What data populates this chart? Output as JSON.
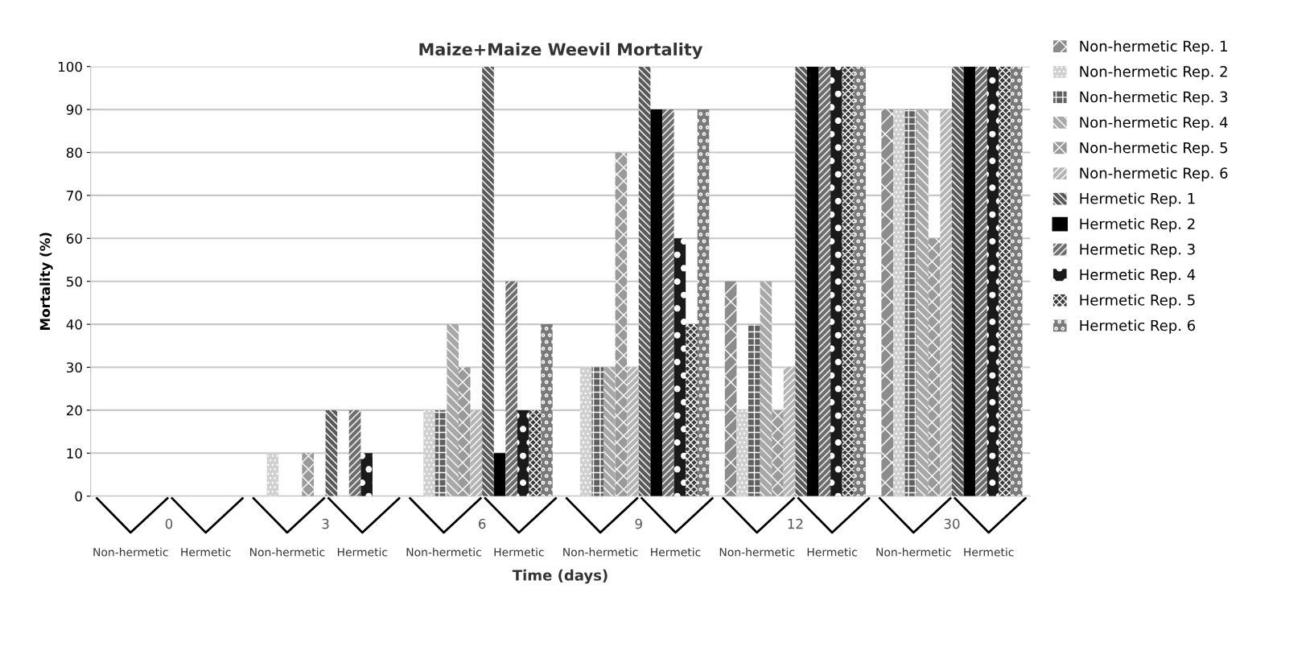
{
  "chart_data": {
    "type": "bar",
    "title": "Maize+Maize Weevil Mortality",
    "xlabel": "Time (days)",
    "ylabel": "Mortality (%)",
    "categories": [
      "0",
      "3",
      "6",
      "9",
      "12",
      "30"
    ],
    "series": [
      {
        "name": "Non-hermetic Rep. 1",
        "color": "#8c8c8c",
        "values": [
          0,
          0,
          0,
          0,
          50,
          90
        ]
      },
      {
        "name": "Non-hermetic Rep. 2",
        "color": "#d0d0d0",
        "values": [
          0,
          10,
          20,
          30,
          20,
          90
        ]
      },
      {
        "name": "Non-hermetic Rep. 3",
        "color": "#606060",
        "values": [
          0,
          0,
          20,
          30,
          40,
          90
        ]
      },
      {
        "name": "Non-hermetic Rep. 4",
        "color": "#a8a8a8",
        "values": [
          0,
          0,
          40,
          30,
          50,
          90
        ]
      },
      {
        "name": "Non-hermetic Rep. 5",
        "color": "#9a9a9a",
        "values": [
          0,
          10,
          30,
          80,
          20,
          60
        ]
      },
      {
        "name": "Non-hermetic Rep. 6",
        "color": "#b4b4b4",
        "values": [
          0,
          0,
          20,
          30,
          30,
          90
        ]
      },
      {
        "name": "Hermetic Rep. 1",
        "color": "#5a5a5a",
        "values": [
          0,
          20,
          100,
          100,
          100,
          100
        ]
      },
      {
        "name": "Hermetic Rep. 2",
        "color": "#000000",
        "values": [
          0,
          0,
          10,
          90,
          100,
          100
        ]
      },
      {
        "name": "Hermetic Rep. 3",
        "color": "#6e6e6e",
        "values": [
          0,
          20,
          50,
          90,
          100,
          100
        ]
      },
      {
        "name": "Hermetic Rep. 4",
        "color": "#1a1a1a",
        "values": [
          0,
          10,
          20,
          60,
          100,
          100
        ]
      },
      {
        "name": "Hermetic Rep. 5",
        "color": "#3c3c3c",
        "values": [
          0,
          0,
          20,
          40,
          100,
          100
        ]
      },
      {
        "name": "Hermetic Rep. 6",
        "color": "#7a7a7a",
        "values": [
          0,
          0,
          40,
          90,
          100,
          100
        ]
      }
    ],
    "ylim": [
      0,
      100
    ],
    "yticks": [
      0,
      10,
      20,
      30,
      40,
      50,
      60,
      70,
      80,
      90,
      100
    ],
    "grid": "y",
    "legend": "right",
    "annotations": [
      "Non-hermetic",
      "Hermetic",
      "Non-hermetic",
      "Hermetic",
      "Non-hermetic",
      "Hermetic",
      "Non-hermetic",
      "Hermetic",
      "Non-hermetic",
      "Hermetic",
      "Non-hermetic",
      "Hermetic"
    ]
  }
}
